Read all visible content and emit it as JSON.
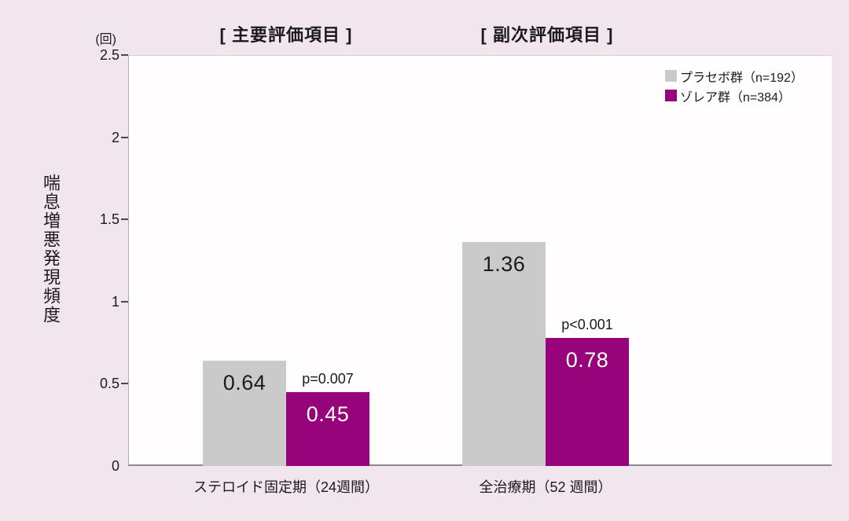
{
  "figure": {
    "y_unit": "(回)",
    "ylabel": "喘息増悪発現頻度",
    "section_titles": [
      "[ 主要評価項目 ]",
      "[ 副次評価項目 ]"
    ]
  },
  "colors": {
    "background": "#f2e6ee",
    "plot_background": "#fffdfe",
    "placebo_bar": "#cacaca",
    "xolair_bar": "#97037b",
    "axis_line": "#8b8b8b",
    "text": "#1b1b1b"
  },
  "chart_data": {
    "type": "bar",
    "section_titles": [
      "[ 主要評価項目 ]",
      "[ 副次評価項目 ]"
    ],
    "ylabel": "喘息増悪発現頻度",
    "y_unit": "(回)",
    "ylim": [
      0,
      2.5
    ],
    "y_ticks": [
      "0",
      "0.5",
      "1",
      "1.5",
      "2",
      "2.5"
    ],
    "categories": [
      "ステロイド固定期（24週間）",
      "全治療期（52 週間）"
    ],
    "series": [
      {
        "name": "プラセボ群（n=192）",
        "key": "placebo",
        "color": "#cacaca",
        "values": [
          0.64,
          1.36
        ],
        "value_labels": [
          "0.64",
          "1.36"
        ],
        "value_label_color": "#1b1b1b"
      },
      {
        "name": "ゾレア群（n=384）",
        "key": "xolair",
        "color": "#97037b",
        "values": [
          0.45,
          0.78
        ],
        "value_labels": [
          "0.45",
          "0.78"
        ],
        "value_label_color": "#ffffff"
      }
    ],
    "annotations": [
      {
        "text": "p=0.007",
        "group_index": 0
      },
      {
        "text": "p<0.001",
        "group_index": 1
      }
    ],
    "grid": false,
    "legend_position": "top-right"
  }
}
